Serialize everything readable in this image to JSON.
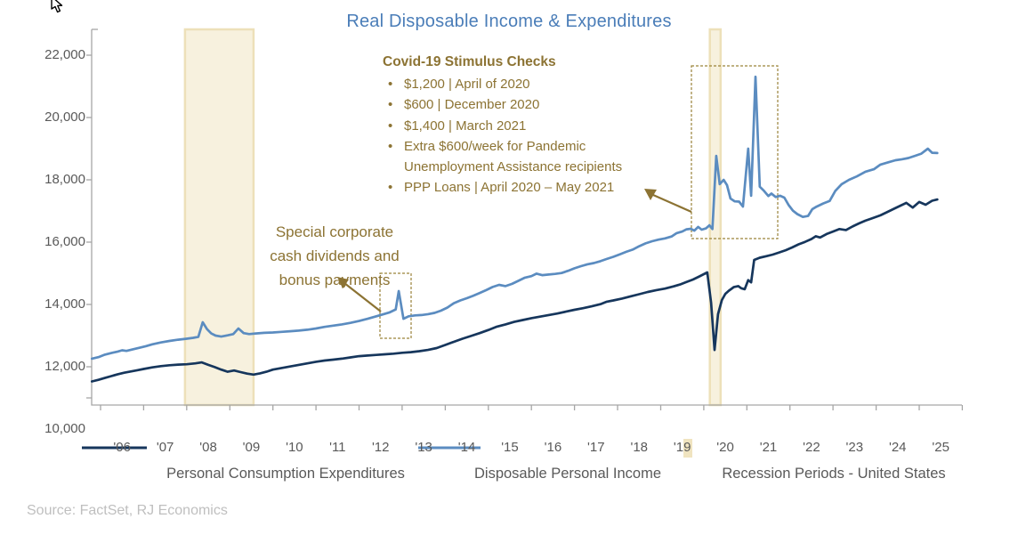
{
  "title": "Real Disposable Income & Expenditures",
  "source": "Source: FactSet, RJ Economics",
  "annotations": {
    "stimulus": {
      "title": "Covid-19 Stimulus Checks",
      "bullets": [
        "$1,200 | April of 2020",
        "$600 | December 2020",
        "$1,400 | March 2021",
        "Extra $600/week for Pandemic Unemployment Assistance recipients",
        "PPP Loans | April 2020 – May 2021"
      ]
    },
    "dividends": {
      "lines": [
        "Special corporate",
        "cash dividends and",
        "bonus payments"
      ]
    }
  },
  "legend": [
    {
      "label": "Personal Consumption Expenditures",
      "type": "line",
      "color": "#16365C"
    },
    {
      "label": "Disposable Personal Income",
      "type": "line",
      "color": "#5B8CC0"
    },
    {
      "label": "Recession Periods - United States",
      "type": "box",
      "color": "#F0E4C0"
    }
  ],
  "colors": {
    "title": "#4A7DB8",
    "pce_line": "#16365C",
    "dpi_line": "#5B8CC0",
    "annotation": "#8C7333",
    "annotation_dash": "#9A8339",
    "band_fill": "#F7F1DE",
    "band_border": "#EDE0B9",
    "axis": "#A6A6A6",
    "axis_text": "#595959",
    "source_text": "#BFBFBF"
  },
  "chart_data": {
    "type": "line",
    "title": "Real Disposable Income & Expenditures",
    "xlabel": "",
    "ylabel": "",
    "ylim": [
      10000,
      22000
    ],
    "grid": false,
    "legend_position": "bottom",
    "y_ticks": [
      "22,000",
      "20,000",
      "18,000",
      "16,000",
      "14,000",
      "12,000",
      "10,000"
    ],
    "y_tick_values": [
      22000,
      20000,
      18000,
      16000,
      14000,
      12000,
      10000
    ],
    "x_ticks": [
      "'06",
      "'07",
      "'08",
      "'09",
      "'10",
      "'11",
      "'12",
      "'13",
      "'14",
      "'15",
      "'16",
      "'17",
      "'18",
      "'19",
      "'20",
      "'21",
      "'22",
      "'23",
      "'24",
      "'25"
    ],
    "x_tick_years": [
      2006,
      2007,
      2008,
      2009,
      2010,
      2011,
      2012,
      2013,
      2014,
      2015,
      2016,
      2017,
      2018,
      2019,
      2020,
      2021,
      2022,
      2023,
      2024,
      2025
    ],
    "recession_bands": [
      [
        2007.96,
        2009.55
      ],
      [
        2020.14,
        2020.39
      ]
    ],
    "series": [
      {
        "name": "Disposable Personal Income",
        "color": "#5B8CC0",
        "points": [
          [
            2005.8,
            12260
          ],
          [
            2005.95,
            12310
          ],
          [
            2006.1,
            12390
          ],
          [
            2006.25,
            12440
          ],
          [
            2006.4,
            12490
          ],
          [
            2006.5,
            12530
          ],
          [
            2006.6,
            12510
          ],
          [
            2006.75,
            12560
          ],
          [
            2006.9,
            12610
          ],
          [
            2007.05,
            12660
          ],
          [
            2007.2,
            12720
          ],
          [
            2007.4,
            12780
          ],
          [
            2007.6,
            12830
          ],
          [
            2007.8,
            12870
          ],
          [
            2008.0,
            12900
          ],
          [
            2008.15,
            12930
          ],
          [
            2008.27,
            12960
          ],
          [
            2008.37,
            13430
          ],
          [
            2008.47,
            13210
          ],
          [
            2008.57,
            13070
          ],
          [
            2008.67,
            13000
          ],
          [
            2008.8,
            12970
          ],
          [
            2008.95,
            13010
          ],
          [
            2009.08,
            13050
          ],
          [
            2009.2,
            13230
          ],
          [
            2009.32,
            13080
          ],
          [
            2009.45,
            13050
          ],
          [
            2009.6,
            13070
          ],
          [
            2009.8,
            13090
          ],
          [
            2010.0,
            13100
          ],
          [
            2010.2,
            13120
          ],
          [
            2010.4,
            13140
          ],
          [
            2010.6,
            13160
          ],
          [
            2010.8,
            13190
          ],
          [
            2011.0,
            13230
          ],
          [
            2011.2,
            13280
          ],
          [
            2011.4,
            13320
          ],
          [
            2011.6,
            13360
          ],
          [
            2011.8,
            13410
          ],
          [
            2012.0,
            13470
          ],
          [
            2012.2,
            13540
          ],
          [
            2012.4,
            13620
          ],
          [
            2012.55,
            13680
          ],
          [
            2012.7,
            13740
          ],
          [
            2012.85,
            13840
          ],
          [
            2012.92,
            14430
          ],
          [
            2013.03,
            13540
          ],
          [
            2013.15,
            13620
          ],
          [
            2013.3,
            13650
          ],
          [
            2013.45,
            13660
          ],
          [
            2013.6,
            13690
          ],
          [
            2013.75,
            13730
          ],
          [
            2013.9,
            13800
          ],
          [
            2014.05,
            13900
          ],
          [
            2014.2,
            14040
          ],
          [
            2014.35,
            14130
          ],
          [
            2014.5,
            14200
          ],
          [
            2014.65,
            14280
          ],
          [
            2014.8,
            14370
          ],
          [
            2014.95,
            14460
          ],
          [
            2015.1,
            14560
          ],
          [
            2015.25,
            14630
          ],
          [
            2015.4,
            14590
          ],
          [
            2015.55,
            14660
          ],
          [
            2015.7,
            14760
          ],
          [
            2015.85,
            14860
          ],
          [
            2016.0,
            14910
          ],
          [
            2016.12,
            14990
          ],
          [
            2016.25,
            14940
          ],
          [
            2016.4,
            14960
          ],
          [
            2016.55,
            14980
          ],
          [
            2016.7,
            15010
          ],
          [
            2016.85,
            15080
          ],
          [
            2017.0,
            15160
          ],
          [
            2017.15,
            15230
          ],
          [
            2017.3,
            15290
          ],
          [
            2017.45,
            15330
          ],
          [
            2017.6,
            15390
          ],
          [
            2017.75,
            15460
          ],
          [
            2017.9,
            15530
          ],
          [
            2018.05,
            15610
          ],
          [
            2018.2,
            15690
          ],
          [
            2018.35,
            15760
          ],
          [
            2018.5,
            15870
          ],
          [
            2018.65,
            15960
          ],
          [
            2018.8,
            16030
          ],
          [
            2018.95,
            16080
          ],
          [
            2019.1,
            16120
          ],
          [
            2019.25,
            16180
          ],
          [
            2019.37,
            16290
          ],
          [
            2019.5,
            16340
          ],
          [
            2019.6,
            16410
          ],
          [
            2019.7,
            16430
          ],
          [
            2019.78,
            16370
          ],
          [
            2019.87,
            16490
          ],
          [
            2019.95,
            16400
          ],
          [
            2020.05,
            16440
          ],
          [
            2020.13,
            16540
          ],
          [
            2020.2,
            16420
          ],
          [
            2020.29,
            18770
          ],
          [
            2020.37,
            17860
          ],
          [
            2020.46,
            18000
          ],
          [
            2020.54,
            17830
          ],
          [
            2020.62,
            17400
          ],
          [
            2020.72,
            17310
          ],
          [
            2020.82,
            17300
          ],
          [
            2020.91,
            17140
          ],
          [
            2021.03,
            19000
          ],
          [
            2021.1,
            17490
          ],
          [
            2021.2,
            21310
          ],
          [
            2021.3,
            17780
          ],
          [
            2021.4,
            17640
          ],
          [
            2021.5,
            17480
          ],
          [
            2021.57,
            17560
          ],
          [
            2021.67,
            17450
          ],
          [
            2021.77,
            17490
          ],
          [
            2021.87,
            17430
          ],
          [
            2021.97,
            17190
          ],
          [
            2022.07,
            17010
          ],
          [
            2022.17,
            16900
          ],
          [
            2022.3,
            16810
          ],
          [
            2022.42,
            16840
          ],
          [
            2022.52,
            17060
          ],
          [
            2022.62,
            17140
          ],
          [
            2022.77,
            17240
          ],
          [
            2022.92,
            17320
          ],
          [
            2023.05,
            17640
          ],
          [
            2023.2,
            17860
          ],
          [
            2023.37,
            18000
          ],
          [
            2023.55,
            18110
          ],
          [
            2023.75,
            18260
          ],
          [
            2023.95,
            18340
          ],
          [
            2024.1,
            18490
          ],
          [
            2024.3,
            18570
          ],
          [
            2024.45,
            18630
          ],
          [
            2024.6,
            18660
          ],
          [
            2024.75,
            18700
          ],
          [
            2024.9,
            18770
          ],
          [
            2025.05,
            18840
          ],
          [
            2025.2,
            19000
          ],
          [
            2025.3,
            18870
          ],
          [
            2025.42,
            18860
          ]
        ]
      },
      {
        "name": "Personal Consumption Expenditures",
        "color": "#16365C",
        "points": [
          [
            2005.8,
            11530
          ],
          [
            2005.95,
            11580
          ],
          [
            2006.1,
            11640
          ],
          [
            2006.25,
            11700
          ],
          [
            2006.4,
            11760
          ],
          [
            2006.55,
            11810
          ],
          [
            2006.7,
            11850
          ],
          [
            2006.85,
            11890
          ],
          [
            2007.0,
            11930
          ],
          [
            2007.2,
            11980
          ],
          [
            2007.4,
            12020
          ],
          [
            2007.6,
            12050
          ],
          [
            2007.8,
            12070
          ],
          [
            2008.0,
            12080
          ],
          [
            2008.2,
            12110
          ],
          [
            2008.35,
            12140
          ],
          [
            2008.5,
            12060
          ],
          [
            2008.65,
            11990
          ],
          [
            2008.8,
            11910
          ],
          [
            2008.95,
            11840
          ],
          [
            2009.1,
            11880
          ],
          [
            2009.25,
            11830
          ],
          [
            2009.4,
            11780
          ],
          [
            2009.55,
            11750
          ],
          [
            2009.7,
            11790
          ],
          [
            2009.85,
            11840
          ],
          [
            2010.0,
            11910
          ],
          [
            2010.2,
            11960
          ],
          [
            2010.4,
            12010
          ],
          [
            2010.6,
            12060
          ],
          [
            2010.8,
            12110
          ],
          [
            2011.0,
            12160
          ],
          [
            2011.2,
            12200
          ],
          [
            2011.4,
            12230
          ],
          [
            2011.6,
            12260
          ],
          [
            2011.8,
            12300
          ],
          [
            2012.0,
            12340
          ],
          [
            2012.2,
            12360
          ],
          [
            2012.4,
            12380
          ],
          [
            2012.6,
            12400
          ],
          [
            2012.8,
            12420
          ],
          [
            2013.0,
            12450
          ],
          [
            2013.2,
            12470
          ],
          [
            2013.4,
            12500
          ],
          [
            2013.6,
            12540
          ],
          [
            2013.8,
            12600
          ],
          [
            2014.0,
            12700
          ],
          [
            2014.2,
            12800
          ],
          [
            2014.4,
            12900
          ],
          [
            2014.6,
            12990
          ],
          [
            2014.8,
            13080
          ],
          [
            2015.0,
            13180
          ],
          [
            2015.2,
            13290
          ],
          [
            2015.4,
            13360
          ],
          [
            2015.6,
            13440
          ],
          [
            2015.8,
            13500
          ],
          [
            2016.0,
            13560
          ],
          [
            2016.2,
            13610
          ],
          [
            2016.4,
            13660
          ],
          [
            2016.6,
            13710
          ],
          [
            2016.8,
            13770
          ],
          [
            2017.0,
            13830
          ],
          [
            2017.2,
            13880
          ],
          [
            2017.4,
            13940
          ],
          [
            2017.6,
            14010
          ],
          [
            2017.75,
            14090
          ],
          [
            2017.9,
            14130
          ],
          [
            2018.1,
            14190
          ],
          [
            2018.3,
            14260
          ],
          [
            2018.5,
            14330
          ],
          [
            2018.7,
            14400
          ],
          [
            2018.9,
            14460
          ],
          [
            2019.1,
            14510
          ],
          [
            2019.3,
            14580
          ],
          [
            2019.45,
            14640
          ],
          [
            2019.6,
            14720
          ],
          [
            2019.75,
            14800
          ],
          [
            2019.9,
            14900
          ],
          [
            2020.08,
            15030
          ],
          [
            2020.17,
            14060
          ],
          [
            2020.25,
            12540
          ],
          [
            2020.33,
            13690
          ],
          [
            2020.42,
            14140
          ],
          [
            2020.5,
            14340
          ],
          [
            2020.58,
            14440
          ],
          [
            2020.7,
            14560
          ],
          [
            2020.8,
            14590
          ],
          [
            2020.87,
            14520
          ],
          [
            2020.95,
            14490
          ],
          [
            2021.03,
            14780
          ],
          [
            2021.1,
            14710
          ],
          [
            2021.17,
            15430
          ],
          [
            2021.3,
            15500
          ],
          [
            2021.45,
            15550
          ],
          [
            2021.6,
            15600
          ],
          [
            2021.75,
            15670
          ],
          [
            2021.9,
            15740
          ],
          [
            2022.05,
            15830
          ],
          [
            2022.2,
            15930
          ],
          [
            2022.35,
            16010
          ],
          [
            2022.5,
            16100
          ],
          [
            2022.6,
            16190
          ],
          [
            2022.7,
            16150
          ],
          [
            2022.85,
            16260
          ],
          [
            2023.0,
            16340
          ],
          [
            2023.15,
            16420
          ],
          [
            2023.3,
            16390
          ],
          [
            2023.45,
            16500
          ],
          [
            2023.6,
            16600
          ],
          [
            2023.75,
            16690
          ],
          [
            2023.9,
            16760
          ],
          [
            2024.1,
            16860
          ],
          [
            2024.25,
            16960
          ],
          [
            2024.4,
            17060
          ],
          [
            2024.55,
            17160
          ],
          [
            2024.7,
            17260
          ],
          [
            2024.85,
            17110
          ],
          [
            2025.0,
            17290
          ],
          [
            2025.15,
            17200
          ],
          [
            2025.3,
            17330
          ],
          [
            2025.42,
            17370
          ]
        ]
      }
    ]
  }
}
